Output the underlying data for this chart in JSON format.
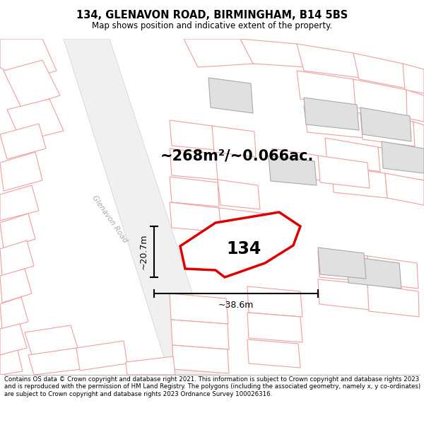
{
  "title": "134, GLENAVON ROAD, BIRMINGHAM, B14 5BS",
  "subtitle": "Map shows position and indicative extent of the property.",
  "footer": "Contains OS data © Crown copyright and database right 2021. This information is subject to Crown copyright and database rights 2023 and is reproduced with the permission of HM Land Registry. The polygons (including the associated geometry, namely x, y co-ordinates) are subject to Crown copyright and database rights 2023 Ordnance Survey 100026316.",
  "area_label": "~268m²/~0.066ac.",
  "label_134": "134",
  "dim_vertical": "~20.7m",
  "dim_horizontal": "~38.6m",
  "road_label": "Glenavon Road",
  "bg_color": "#ffffff",
  "map_bg": "#ffffff",
  "plot_outline_color": "#dd0000",
  "other_plot_color": "#f0a0a0",
  "building_fill": "#e0e0e0",
  "road_fill": "#e8e8e8"
}
